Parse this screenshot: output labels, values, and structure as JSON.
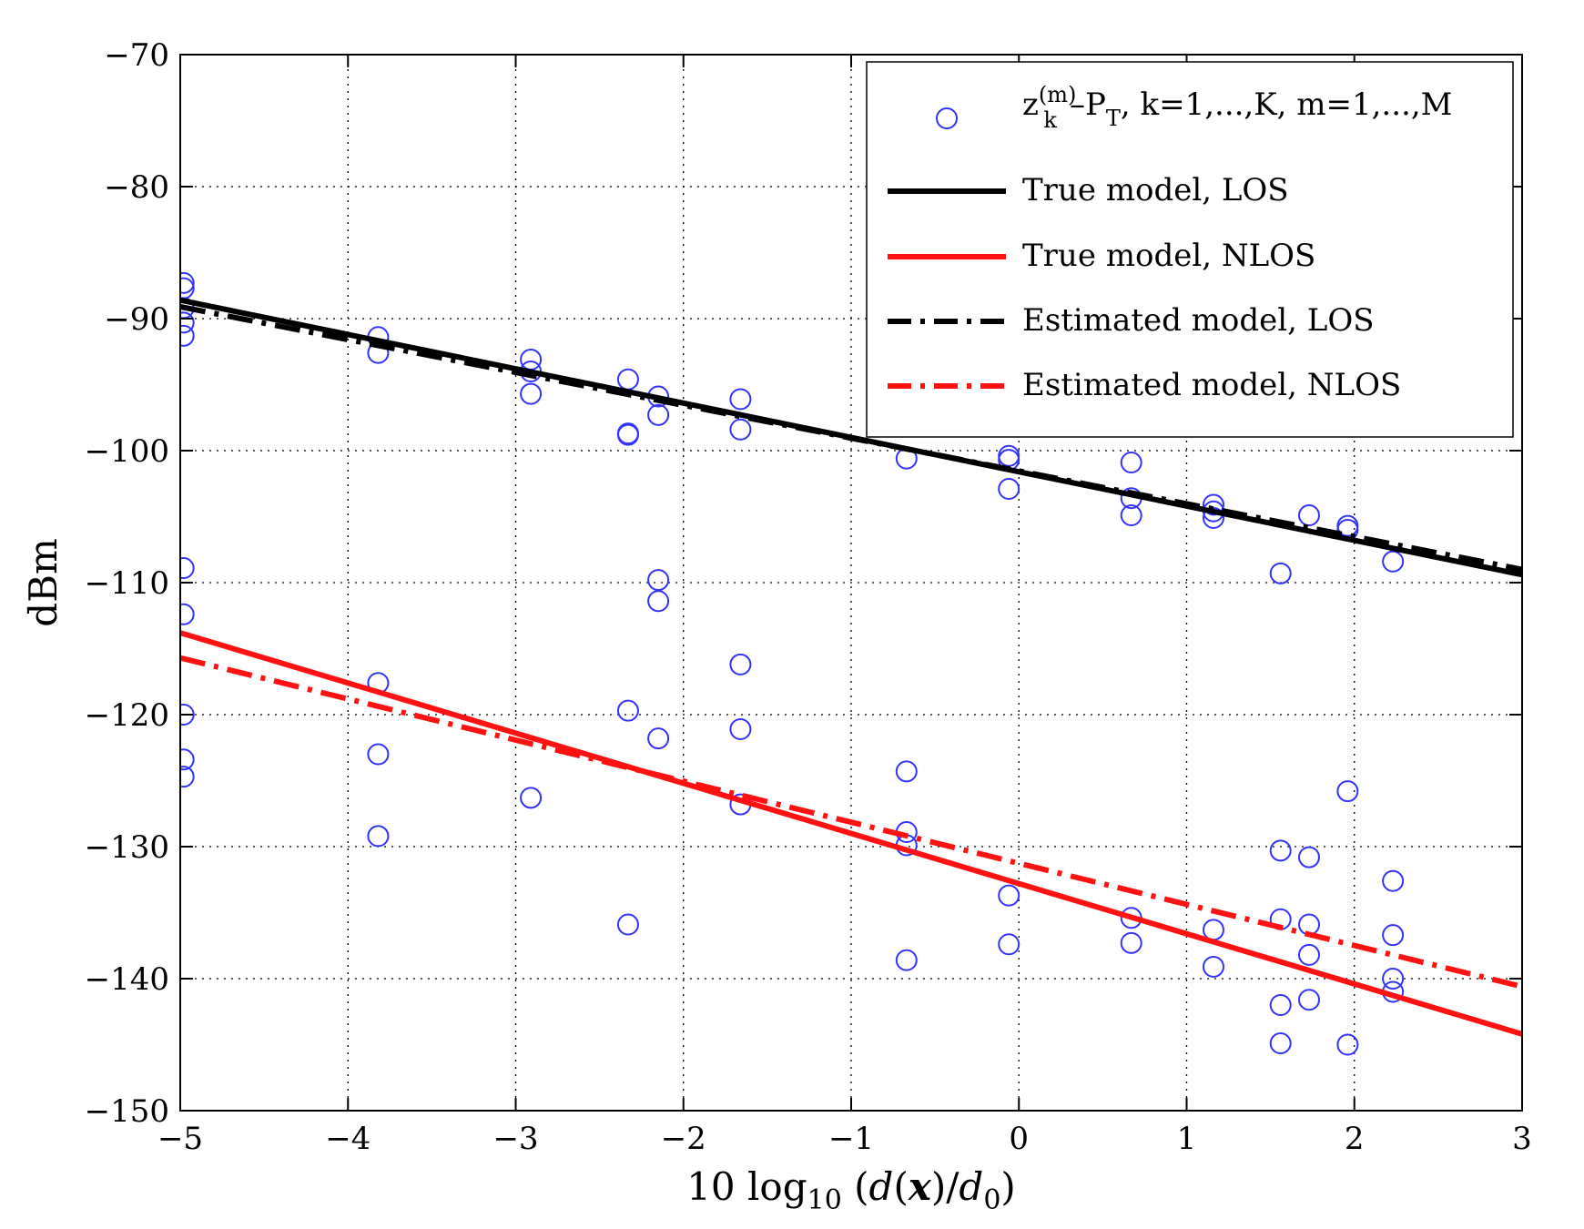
{
  "chart_data": {
    "type": "scatter",
    "xlabel": "10 log10 (d(x)/d0)",
    "ylabel": "dBm",
    "xlim": [
      -5,
      3
    ],
    "ylim": [
      -150,
      -70
    ],
    "xticks": [
      -5,
      -4,
      -3,
      -2,
      -1,
      0,
      1,
      2,
      3
    ],
    "yticks": [
      -70,
      -80,
      -90,
      -100,
      -110,
      -120,
      -130,
      -140,
      -150
    ],
    "grid": true,
    "legend_position": "top-right",
    "colors": {
      "points": "#3333ff",
      "los": "#000000",
      "nlos": "#ff1111"
    },
    "legend": [
      {
        "id": "points",
        "label": "z_k^(m)–P_T, k=1,...,K, m=1,...,M",
        "base": "z",
        "sub": "k",
        "sup": "(m)",
        "tail": "–P",
        "tail_sub": "T",
        "rest": ", k=1,...,K, m=1,...,M"
      },
      {
        "id": "true_los",
        "label": "True model, LOS"
      },
      {
        "id": "true_nlos",
        "label": "True model, NLOS"
      },
      {
        "id": "est_los",
        "label": "Estimated model, LOS"
      },
      {
        "id": "est_nlos",
        "label": "Estimated model, NLOS"
      }
    ],
    "lines": [
      {
        "id": "true_los",
        "name": "True model, LOS",
        "style": "solid",
        "color": "#000000",
        "x": [
          -5,
          3
        ],
        "y": [
          -88.6,
          -109.4
        ]
      },
      {
        "id": "est_los",
        "name": "Estimated model, LOS",
        "style": "dashdot",
        "color": "#000000",
        "x": [
          -5,
          3
        ],
        "y": [
          -89.1,
          -109.0
        ]
      },
      {
        "id": "true_nlos",
        "name": "True model, NLOS",
        "style": "solid",
        "color": "#ff1111",
        "x": [
          -5,
          3
        ],
        "y": [
          -113.8,
          -144.2
        ]
      },
      {
        "id": "est_nlos",
        "name": "Estimated model, NLOS",
        "style": "dashdot",
        "color": "#ff1111",
        "x": [
          -5,
          3
        ],
        "y": [
          -115.7,
          -140.6
        ]
      }
    ],
    "points": [
      {
        "x": -4.98,
        "y": -87.3
      },
      {
        "x": -4.98,
        "y": -87.7
      },
      {
        "x": -4.98,
        "y": -89.2
      },
      {
        "x": -4.98,
        "y": -90.3
      },
      {
        "x": -4.98,
        "y": -91.3
      },
      {
        "x": -4.98,
        "y": -108.9
      },
      {
        "x": -4.98,
        "y": -112.4
      },
      {
        "x": -4.98,
        "y": -120.0
      },
      {
        "x": -4.98,
        "y": -123.4
      },
      {
        "x": -4.98,
        "y": -124.7
      },
      {
        "x": -3.82,
        "y": -91.4
      },
      {
        "x": -3.82,
        "y": -92.6
      },
      {
        "x": -3.82,
        "y": -117.6
      },
      {
        "x": -3.82,
        "y": -123.0
      },
      {
        "x": -3.82,
        "y": -129.2
      },
      {
        "x": -2.91,
        "y": -93.1
      },
      {
        "x": -2.91,
        "y": -94.0
      },
      {
        "x": -2.91,
        "y": -95.7
      },
      {
        "x": -2.91,
        "y": -126.3
      },
      {
        "x": -2.33,
        "y": -94.6
      },
      {
        "x": -2.33,
        "y": -98.7
      },
      {
        "x": -2.33,
        "y": -98.8
      },
      {
        "x": -2.33,
        "y": -119.7
      },
      {
        "x": -2.33,
        "y": -135.9
      },
      {
        "x": -2.15,
        "y": -95.9
      },
      {
        "x": -2.15,
        "y": -97.3
      },
      {
        "x": -2.15,
        "y": -109.8
      },
      {
        "x": -2.15,
        "y": -111.4
      },
      {
        "x": -2.15,
        "y": -121.8
      },
      {
        "x": -1.66,
        "y": -96.1
      },
      {
        "x": -1.66,
        "y": -98.4
      },
      {
        "x": -1.66,
        "y": -116.2
      },
      {
        "x": -1.66,
        "y": -121.1
      },
      {
        "x": -1.66,
        "y": -126.8
      },
      {
        "x": -0.67,
        "y": -100.6
      },
      {
        "x": -0.67,
        "y": -124.3
      },
      {
        "x": -0.67,
        "y": -128.9
      },
      {
        "x": -0.67,
        "y": -129.9
      },
      {
        "x": -0.67,
        "y": -138.6
      },
      {
        "x": -0.06,
        "y": -100.4
      },
      {
        "x": -0.06,
        "y": -100.7
      },
      {
        "x": -0.06,
        "y": -102.9
      },
      {
        "x": -0.06,
        "y": -133.7
      },
      {
        "x": -0.06,
        "y": -137.4
      },
      {
        "x": 0.67,
        "y": -100.9
      },
      {
        "x": 0.67,
        "y": -103.6
      },
      {
        "x": 0.67,
        "y": -104.9
      },
      {
        "x": 0.67,
        "y": -135.4
      },
      {
        "x": 0.67,
        "y": -137.3
      },
      {
        "x": 1.16,
        "y": -104.1
      },
      {
        "x": 1.16,
        "y": -104.6
      },
      {
        "x": 1.16,
        "y": -105.1
      },
      {
        "x": 1.16,
        "y": -136.3
      },
      {
        "x": 1.16,
        "y": -139.1
      },
      {
        "x": 1.56,
        "y": -109.3
      },
      {
        "x": 1.56,
        "y": -130.3
      },
      {
        "x": 1.56,
        "y": -135.5
      },
      {
        "x": 1.56,
        "y": -142.0
      },
      {
        "x": 1.56,
        "y": -144.9
      },
      {
        "x": 1.73,
        "y": -104.9
      },
      {
        "x": 1.73,
        "y": -130.8
      },
      {
        "x": 1.73,
        "y": -135.9
      },
      {
        "x": 1.73,
        "y": -138.2
      },
      {
        "x": 1.73,
        "y": -141.6
      },
      {
        "x": 1.96,
        "y": -105.7
      },
      {
        "x": 1.96,
        "y": -106.0
      },
      {
        "x": 1.96,
        "y": -125.8
      },
      {
        "x": 1.96,
        "y": -145.0
      },
      {
        "x": 2.23,
        "y": -108.4
      },
      {
        "x": 2.23,
        "y": -132.6
      },
      {
        "x": 2.23,
        "y": -136.7
      },
      {
        "x": 2.23,
        "y": -140.0
      },
      {
        "x": 2.23,
        "y": -141.0
      }
    ]
  }
}
